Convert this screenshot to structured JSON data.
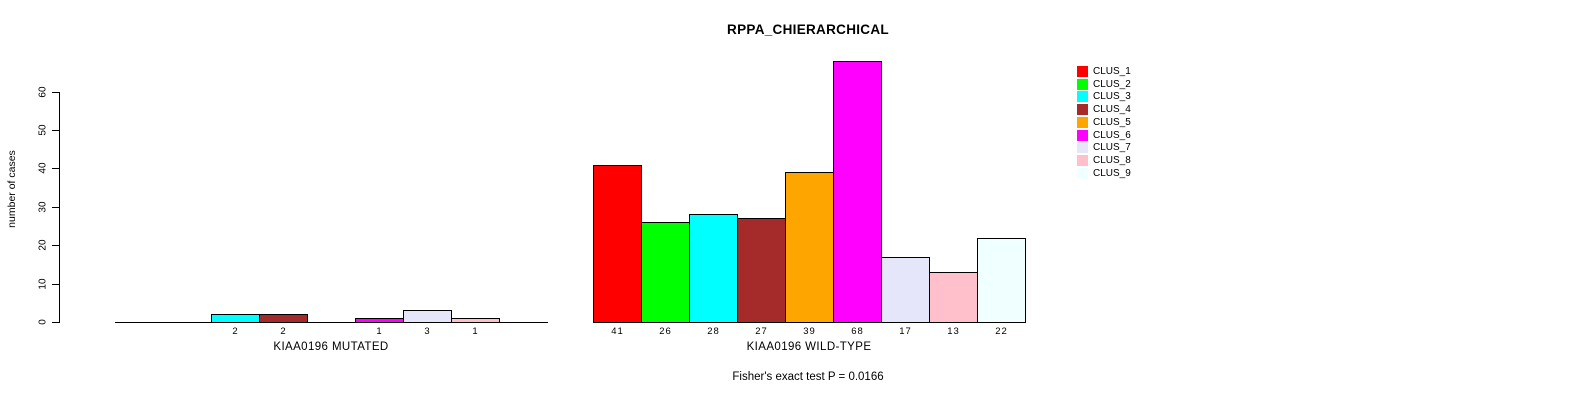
{
  "chart_data": {
    "type": "bar",
    "title": "RPPA_CHIERARCHICAL",
    "ylabel": "number of cases",
    "xlabel": "",
    "ylim": [
      0,
      68
    ],
    "yticks": [
      0,
      10,
      20,
      30,
      40,
      50,
      60
    ],
    "grid": false,
    "categories": [
      "CLUS_1",
      "CLUS_2",
      "CLUS_3",
      "CLUS_4",
      "CLUS_5",
      "CLUS_6",
      "CLUS_7",
      "CLUS_8",
      "CLUS_9"
    ],
    "colors": [
      "#FF0000",
      "#00FF00",
      "#00FFFF",
      "#A52A2A",
      "#FFA500",
      "#FF00FF",
      "#E6E6FA",
      "#FFC0CB",
      "#F0FFFF"
    ],
    "groups": [
      {
        "label": "KIAA0196 MUTATED",
        "values": [
          0,
          0,
          2,
          2,
          0,
          1,
          3,
          1,
          0
        ]
      },
      {
        "label": "KIAA0196 WILD-TYPE",
        "values": [
          41,
          26,
          28,
          27,
          39,
          68,
          17,
          13,
          22
        ]
      }
    ],
    "legend": {
      "position": "right",
      "entries": [
        "CLUS_1",
        "CLUS_2",
        "CLUS_3",
        "CLUS_4",
        "CLUS_5",
        "CLUS_6",
        "CLUS_7",
        "CLUS_8",
        "CLUS_9"
      ]
    },
    "annotation": "Fisher's exact test P = 0.0166"
  }
}
